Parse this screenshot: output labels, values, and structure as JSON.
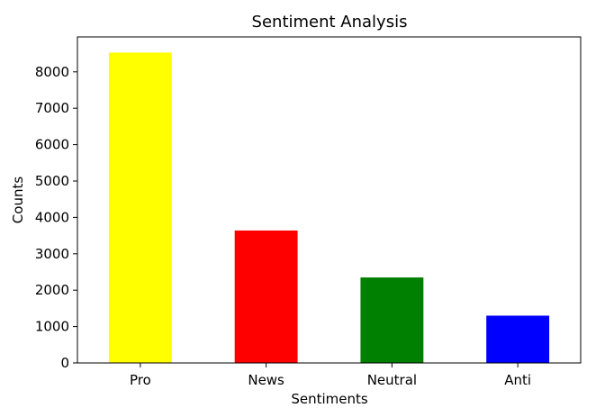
{
  "chart_data": {
    "type": "bar",
    "title": "Sentiment Analysis",
    "xlabel": "Sentiments",
    "ylabel": "Counts",
    "categories": [
      "Pro",
      "News",
      "Neutral",
      "Anti"
    ],
    "values": [
      8530,
      3640,
      2350,
      1300
    ],
    "colors": [
      "#ffff00",
      "#ff0000",
      "#008000",
      "#0000ff"
    ],
    "ylim": [
      0,
      8960
    ],
    "yticks": [
      0,
      1000,
      2000,
      3000,
      4000,
      5000,
      6000,
      7000,
      8000
    ],
    "grid": false,
    "legend": "none"
  }
}
